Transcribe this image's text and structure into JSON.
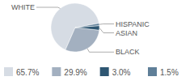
{
  "chart_data": {
    "type": "pie",
    "categories": [
      "WHITE",
      "BLACK",
      "ASIAN",
      "HISPANIC"
    ],
    "values": [
      65.7,
      29.9,
      3.0,
      1.5
    ],
    "value_labels": [
      "65.7%",
      "29.9%",
      "3.0%",
      "1.5%"
    ],
    "colors": [
      "#d6dce4",
      "#a3b0c0",
      "#2e5672",
      "#5f7f98"
    ]
  }
}
